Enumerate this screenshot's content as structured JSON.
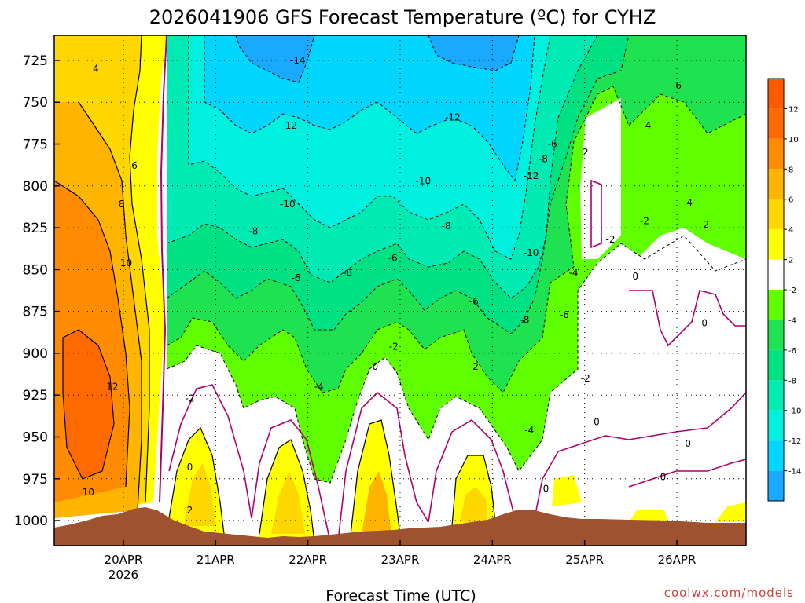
{
  "title": "2026041906 GFS Forecast Temperature (ºC) for CYHZ",
  "credit": "coolwx.com/models",
  "chart_data": {
    "type": "heatmap",
    "title": "2026041906 GFS Forecast Temperature (ºC) for CYHZ",
    "xlabel": "Forecast Time (UTC)",
    "ylabel": "",
    "x_ticks": [
      {
        "label": "20APR",
        "sub": "2026",
        "day": 20
      },
      {
        "label": "21APR",
        "sub": "",
        "day": 21
      },
      {
        "label": "22APR",
        "sub": "",
        "day": 22
      },
      {
        "label": "23APR",
        "sub": "",
        "day": 23
      },
      {
        "label": "24APR",
        "sub": "",
        "day": 24
      },
      {
        "label": "25APR",
        "sub": "",
        "day": 25
      },
      {
        "label": "26APR",
        "sub": "",
        "day": 26
      }
    ],
    "xlim": [
      19.25,
      26.75
    ],
    "y_ticks": [
      725,
      750,
      775,
      800,
      825,
      850,
      875,
      900,
      925,
      950,
      975,
      1000
    ],
    "ylim": [
      1015,
      710
    ],
    "grid": true,
    "colorbar": {
      "levels": [
        -16,
        -14,
        -12,
        -10,
        -8,
        -6,
        -4,
        -2,
        2,
        4,
        6,
        8,
        10,
        12,
        14
      ],
      "tick_labels": [
        "-14",
        "-12",
        "-10",
        "-8",
        "-6",
        "-4",
        "-2",
        "2",
        "4",
        "6",
        "8",
        "10",
        "12"
      ],
      "colors": [
        "#19a9ff",
        "#00d6ff",
        "#00f0e0",
        "#00eab4",
        "#00e282",
        "#1ee24f",
        "#60ff00",
        "#ffffff",
        "#ffff00",
        "#ffd700",
        "#ffb400",
        "#ff8c00",
        "#ff6a00",
        "#ff5a00"
      ]
    },
    "contour_labels": [
      {
        "text": "4",
        "x": 19.7,
        "y": 730
      },
      {
        "text": "6",
        "x": 20.12,
        "y": 788
      },
      {
        "text": "8",
        "x": 19.98,
        "y": 811
      },
      {
        "text": "10",
        "x": 20.03,
        "y": 846
      },
      {
        "text": "12",
        "x": 19.88,
        "y": 920
      },
      {
        "text": "10",
        "x": 19.62,
        "y": 983
      },
      {
        "text": "-2",
        "x": 20.72,
        "y": 927
      },
      {
        "text": "0",
        "x": 20.72,
        "y": 968
      },
      {
        "text": "2",
        "x": 20.72,
        "y": 994
      },
      {
        "text": "-14",
        "x": 21.89,
        "y": 725
      },
      {
        "text": "-12",
        "x": 21.8,
        "y": 764
      },
      {
        "text": "-10",
        "x": 21.78,
        "y": 811
      },
      {
        "text": "-8",
        "x": 21.41,
        "y": 827
      },
      {
        "text": "-6",
        "x": 21.87,
        "y": 855
      },
      {
        "text": "-4",
        "x": 22.12,
        "y": 920
      },
      {
        "text": "-8",
        "x": 22.43,
        "y": 852
      },
      {
        "text": "-6",
        "x": 22.92,
        "y": 843
      },
      {
        "text": "-2",
        "x": 22.93,
        "y": 896
      },
      {
        "text": "0",
        "x": 22.73,
        "y": 908
      },
      {
        "text": "-12",
        "x": 23.57,
        "y": 759
      },
      {
        "text": "-10",
        "x": 23.25,
        "y": 797
      },
      {
        "text": "-8",
        "x": 23.5,
        "y": 824
      },
      {
        "text": "-6",
        "x": 23.8,
        "y": 869
      },
      {
        "text": "-2",
        "x": 23.8,
        "y": 908
      },
      {
        "text": "-12",
        "x": 24.42,
        "y": 794
      },
      {
        "text": "-8",
        "x": 24.55,
        "y": 784
      },
      {
        "text": "-6",
        "x": 24.65,
        "y": 775
      },
      {
        "text": "-10",
        "x": 24.42,
        "y": 840
      },
      {
        "text": "-8",
        "x": 24.35,
        "y": 880
      },
      {
        "text": "-4",
        "x": 24.4,
        "y": 946
      },
      {
        "text": "-4",
        "x": 24.88,
        "y": 852
      },
      {
        "text": "-6",
        "x": 24.78,
        "y": 877
      },
      {
        "text": "2",
        "x": 25.01,
        "y": 780
      },
      {
        "text": "-2",
        "x": 25.01,
        "y": 915
      },
      {
        "text": "0",
        "x": 25.13,
        "y": 941
      },
      {
        "text": "0",
        "x": 24.58,
        "y": 981
      },
      {
        "text": "-4",
        "x": 25.67,
        "y": 764
      },
      {
        "text": "-2",
        "x": 25.28,
        "y": 832
      },
      {
        "text": "-2",
        "x": 25.65,
        "y": 821
      },
      {
        "text": "-4",
        "x": 26.12,
        "y": 810
      },
      {
        "text": "-2",
        "x": 26.3,
        "y": 823
      },
      {
        "text": "-6",
        "x": 26.0,
        "y": 740
      },
      {
        "text": "0",
        "x": 25.55,
        "y": 854
      },
      {
        "text": "0",
        "x": 26.3,
        "y": 882
      },
      {
        "text": "0",
        "x": 26.12,
        "y": 954
      },
      {
        "text": "0",
        "x": 25.85,
        "y": 974
      }
    ]
  }
}
